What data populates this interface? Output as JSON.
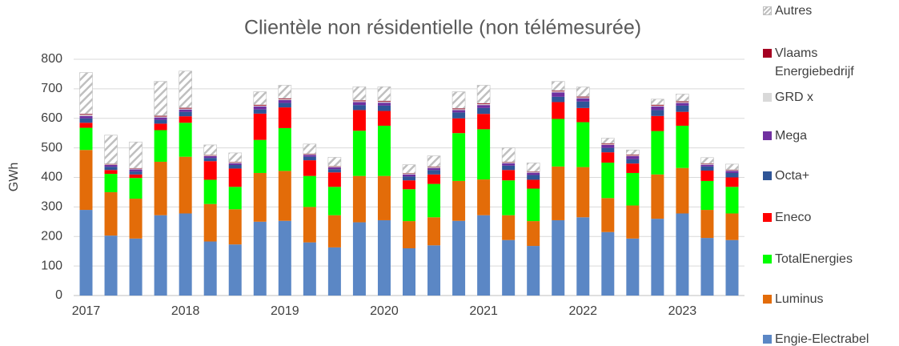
{
  "chart_data": {
    "type": "stacked_bar",
    "title": "Clientèle non résidentielle (non télémesurée)",
    "ylabel": "GWh",
    "categories": [
      "2017",
      null,
      null,
      null,
      "2018",
      null,
      null,
      null,
      "2019",
      null,
      null,
      null,
      "2020",
      null,
      null,
      null,
      "2021",
      null,
      null,
      null,
      "2022",
      null,
      null,
      null,
      "2023",
      null,
      null
    ],
    "ylim": [
      0,
      800
    ],
    "yticks": [
      0,
      100,
      200,
      300,
      400,
      500,
      600,
      700,
      800
    ],
    "grid": true,
    "legend": "right",
    "series": [
      {
        "name": "Engie-Electrabel",
        "color": "#5b87c5",
        "values": [
          290,
          203,
          193,
          272,
          278,
          183,
          173,
          250,
          253,
          180,
          163,
          248,
          255,
          160,
          170,
          253,
          272,
          188,
          168,
          255,
          265,
          215,
          193,
          260,
          278,
          195,
          188
        ]
      },
      {
        "name": "Luminus",
        "color": "#e36c09",
        "values": [
          203,
          147,
          135,
          181,
          192,
          127,
          119,
          165,
          169,
          120,
          109,
          157,
          150,
          92,
          95,
          135,
          121,
          84,
          84,
          182,
          170,
          115,
          112,
          150,
          154,
          95,
          90
        ]
      },
      {
        "name": "TotalEnergies",
        "color": "#00ff00",
        "values": [
          75,
          62,
          70,
          107,
          115,
          82,
          76,
          112,
          145,
          105,
          96,
          153,
          170,
          108,
          113,
          162,
          170,
          118,
          110,
          161,
          152,
          120,
          110,
          147,
          143,
          98,
          90
        ]
      },
      {
        "name": "Eneco",
        "color": "#ff0000",
        "values": [
          17,
          13,
          12,
          22,
          22,
          63,
          62,
          89,
          70,
          53,
          49,
          70,
          50,
          30,
          32,
          50,
          52,
          35,
          30,
          57,
          48,
          35,
          32,
          51,
          47,
          35,
          32
        ]
      },
      {
        "name": "Octa+",
        "color": "#2f5597",
        "values": [
          15,
          11,
          10,
          13,
          15,
          11,
          12,
          14,
          15,
          12,
          11,
          17,
          18,
          13,
          15,
          20,
          20,
          15,
          16,
          18,
          22,
          15,
          15,
          20,
          21,
          14,
          15
        ]
      },
      {
        "name": "Mega",
        "color": "#7030a0",
        "values": [
          8,
          6,
          7,
          8,
          8,
          6,
          6,
          10,
          10,
          6,
          6,
          10,
          10,
          7,
          7,
          8,
          10,
          8,
          8,
          15,
          11,
          10,
          10,
          12,
          9,
          6,
          7
        ]
      },
      {
        "name": "GRD x",
        "color": "#d9d9d9",
        "values": [
          4,
          2,
          2,
          3,
          3,
          2,
          2,
          3,
          3,
          2,
          2,
          3,
          3,
          2,
          2,
          3,
          3,
          2,
          2,
          3,
          3,
          2,
          2,
          3,
          3,
          2,
          2
        ]
      },
      {
        "name": "Vlaams Energiebedrijf",
        "color": "#a50021",
        "values": [
          3,
          2,
          2,
          3,
          3,
          2,
          2,
          3,
          3,
          2,
          2,
          3,
          3,
          2,
          2,
          3,
          3,
          2,
          2,
          3,
          3,
          3,
          3,
          3,
          3,
          2,
          2
        ]
      },
      {
        "name": "Autres",
        "color": "#bfbfbf",
        "hatch": true,
        "values": [
          140,
          97,
          89,
          116,
          124,
          34,
          31,
          44,
          44,
          33,
          30,
          46,
          48,
          29,
          37,
          56,
          61,
          48,
          29,
          31,
          32,
          18,
          16,
          19,
          24,
          20,
          19
        ]
      }
    ]
  }
}
